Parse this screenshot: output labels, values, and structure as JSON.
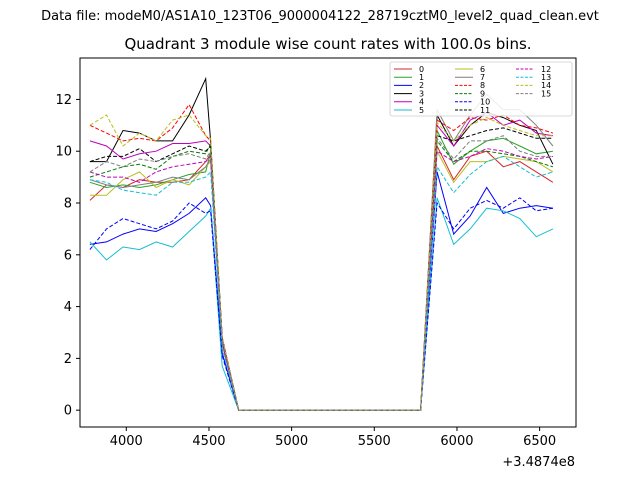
{
  "figure": {
    "suptitle": "Data file: modeM0/AS1A10_123T06_9000004122_28719cztM0_level2_quad_clean.evt",
    "title": "Quadrant 3 module wise count rates with 100.0s bins.",
    "x_offset_label": "+3.4874e8"
  },
  "chart_data": {
    "type": "line",
    "title": "Quadrant 3 module wise count rates with 100.0s bins.",
    "xlabel": "",
    "ylabel": "",
    "x_offset": 348740000,
    "xlim": [
      3720,
      6720
    ],
    "ylim": [
      -0.65,
      13.6
    ],
    "xticks": [
      4000,
      4500,
      5000,
      5500,
      6000,
      6500
    ],
    "yticks": [
      0,
      2,
      4,
      6,
      8,
      10,
      12
    ],
    "grid": false,
    "legend_placement": "top-right",
    "x": [
      3780,
      3880,
      3980,
      4080,
      4180,
      4280,
      4380,
      4480,
      4510,
      4580,
      4680,
      4780,
      4880,
      4980,
      5080,
      5180,
      5280,
      5380,
      5480,
      5580,
      5680,
      5780,
      5880,
      5980,
      6080,
      6180,
      6280,
      6380,
      6480,
      6580
    ],
    "series": [
      {
        "name": "0",
        "color": "#d62728",
        "dash": false,
        "values": [
          8.1,
          8.7,
          8.6,
          8.9,
          8.8,
          8.8,
          8.9,
          9.6,
          9.9,
          2.6,
          0,
          0,
          0,
          0,
          0,
          0,
          0,
          0,
          0,
          0,
          0,
          0,
          10.2,
          8.9,
          9.8,
          10.0,
          9.4,
          9.6,
          9.2,
          8.8
        ]
      },
      {
        "name": "1",
        "color": "#2ca02c",
        "dash": false,
        "values": [
          8.8,
          8.6,
          8.7,
          8.6,
          8.7,
          8.9,
          9.1,
          9.2,
          10.0,
          2.7,
          0,
          0,
          0,
          0,
          0,
          0,
          0,
          0,
          0,
          0,
          0,
          0,
          10.8,
          9.5,
          10.0,
          10.4,
          10.5,
          10.2,
          9.9,
          10.0
        ]
      },
      {
        "name": "2",
        "color": "#0000ff",
        "dash": false,
        "values": [
          6.4,
          6.5,
          6.8,
          7.0,
          6.9,
          7.2,
          7.6,
          8.2,
          7.9,
          2.2,
          0,
          0,
          0,
          0,
          0,
          0,
          0,
          0,
          0,
          0,
          0,
          0,
          9.2,
          6.8,
          7.5,
          8.6,
          7.6,
          7.8,
          7.9,
          7.8
        ]
      },
      {
        "name": "3",
        "color": "#000000",
        "dash": false,
        "values": [
          9.6,
          9.6,
          10.8,
          10.7,
          10.4,
          10.4,
          11.4,
          12.8,
          10.4,
          2.8,
          0,
          0,
          0,
          0,
          0,
          0,
          0,
          0,
          0,
          0,
          0,
          0,
          11.4,
          10.2,
          11.0,
          11.5,
          11.3,
          11.0,
          10.8,
          9.5
        ]
      },
      {
        "name": "4",
        "color": "#bf00bf",
        "dash": false,
        "values": [
          10.4,
          10.2,
          9.7,
          9.9,
          10.0,
          10.3,
          10.3,
          10.4,
          10.2,
          2.8,
          0,
          0,
          0,
          0,
          0,
          0,
          0,
          0,
          0,
          0,
          0,
          0,
          11.0,
          10.2,
          11.2,
          11.5,
          11.0,
          11.2,
          10.7,
          10.6
        ]
      },
      {
        "name": "5",
        "color": "#17becf",
        "dash": false,
        "values": [
          6.5,
          5.8,
          6.3,
          6.2,
          6.5,
          6.3,
          6.9,
          7.5,
          7.8,
          1.7,
          0,
          0,
          0,
          0,
          0,
          0,
          0,
          0,
          0,
          0,
          0,
          0,
          8.2,
          6.4,
          7.0,
          7.8,
          7.7,
          7.4,
          6.7,
          7.0
        ]
      },
      {
        "name": "6",
        "color": "#bcbd22",
        "dash": false,
        "values": [
          8.3,
          8.3,
          8.9,
          9.2,
          8.6,
          8.9,
          8.7,
          9.4,
          9.6,
          2.5,
          0,
          0,
          0,
          0,
          0,
          0,
          0,
          0,
          0,
          0,
          0,
          0,
          10.0,
          8.8,
          9.6,
          9.6,
          9.8,
          9.7,
          9.6,
          9.2
        ]
      },
      {
        "name": "7",
        "color": "#7f7f7f",
        "dash": false,
        "values": [
          8.9,
          8.7,
          8.6,
          8.7,
          8.8,
          9.0,
          8.9,
          9.4,
          9.7,
          2.6,
          0,
          0,
          0,
          0,
          0,
          0,
          0,
          0,
          0,
          0,
          0,
          0,
          11.6,
          10.4,
          11.4,
          12.2,
          11.6,
          11.6,
          11.0,
          10.2
        ]
      },
      {
        "name": "8",
        "color": "#ff0000",
        "dash": true,
        "values": [
          11.0,
          10.7,
          10.4,
          10.5,
          10.4,
          10.9,
          11.8,
          10.6,
          10.4,
          2.8,
          0,
          0,
          0,
          0,
          0,
          0,
          0,
          0,
          0,
          0,
          0,
          0,
          11.2,
          10.8,
          11.3,
          11.2,
          11.4,
          11.0,
          10.9,
          10.7
        ]
      },
      {
        "name": "9",
        "color": "#008000",
        "dash": true,
        "values": [
          9.0,
          9.2,
          9.4,
          9.5,
          9.3,
          9.8,
          10.0,
          9.9,
          10.3,
          2.7,
          0,
          0,
          0,
          0,
          0,
          0,
          0,
          0,
          0,
          0,
          0,
          0,
          10.4,
          9.6,
          10.0,
          10.0,
          9.9,
          9.8,
          9.6,
          9.4
        ]
      },
      {
        "name": "10",
        "color": "#0000ff",
        "dash": true,
        "values": [
          6.2,
          7.0,
          7.4,
          7.2,
          7.0,
          7.3,
          8.0,
          7.6,
          7.7,
          2.1,
          0,
          0,
          0,
          0,
          0,
          0,
          0,
          0,
          0,
          0,
          0,
          0,
          8.0,
          7.0,
          7.8,
          8.1,
          7.8,
          8.2,
          7.7,
          7.8
        ]
      },
      {
        "name": "11",
        "color": "#000000",
        "dash": true,
        "values": [
          9.6,
          9.8,
          9.8,
          10.1,
          9.6,
          9.9,
          10.2,
          10.0,
          10.2,
          2.7,
          0,
          0,
          0,
          0,
          0,
          0,
          0,
          0,
          0,
          0,
          0,
          0,
          10.6,
          10.4,
          10.6,
          10.8,
          10.9,
          10.7,
          10.5,
          10.5
        ]
      },
      {
        "name": "12",
        "color": "#bf00bf",
        "dash": true,
        "values": [
          9.2,
          9.0,
          9.0,
          8.8,
          9.2,
          9.4,
          9.5,
          9.6,
          9.8,
          2.6,
          0,
          0,
          0,
          0,
          0,
          0,
          0,
          0,
          0,
          0,
          0,
          0,
          10.0,
          9.6,
          9.8,
          10.1,
          10.0,
          9.8,
          9.7,
          9.8
        ]
      },
      {
        "name": "13",
        "color": "#17becf",
        "dash": true,
        "values": [
          8.9,
          8.8,
          8.5,
          8.4,
          8.3,
          8.8,
          8.8,
          9.0,
          9.2,
          2.4,
          0,
          0,
          0,
          0,
          0,
          0,
          0,
          0,
          0,
          0,
          0,
          0,
          9.4,
          8.4,
          9.1,
          9.6,
          9.8,
          9.4,
          9.0,
          9.2
        ]
      },
      {
        "name": "14",
        "color": "#bcbd22",
        "dash": true,
        "values": [
          11.0,
          11.4,
          10.2,
          10.7,
          10.4,
          11.2,
          11.4,
          10.6,
          10.5,
          2.8,
          0,
          0,
          0,
          0,
          0,
          0,
          0,
          0,
          0,
          0,
          0,
          0,
          11.1,
          10.4,
          11.0,
          11.3,
          11.0,
          10.8,
          10.6,
          10.6
        ]
      },
      {
        "name": "15",
        "color": "#7f7f7f",
        "dash": true,
        "values": [
          9.2,
          9.6,
          9.4,
          9.7,
          9.6,
          9.8,
          9.9,
          9.7,
          10.0,
          2.7,
          0,
          0,
          0,
          0,
          0,
          0,
          0,
          0,
          0,
          0,
          0,
          0,
          10.5,
          9.7,
          10.4,
          10.4,
          10.6,
          10.0,
          9.8,
          9.8
        ]
      }
    ]
  }
}
